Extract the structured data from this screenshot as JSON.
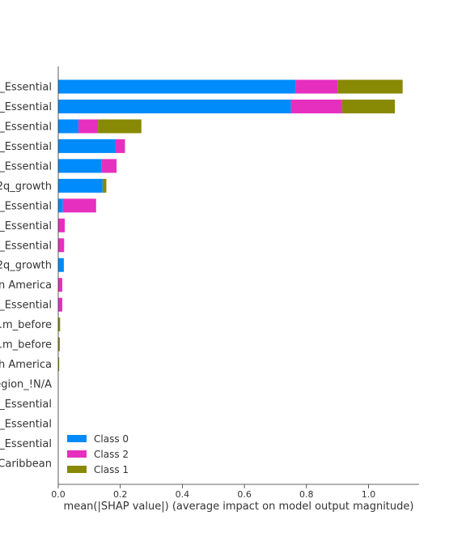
{
  "chart_data": {
    "type": "bar",
    "orientation": "horizontal",
    "stacked": true,
    "xlabel": "mean(|SHAP value|) (average impact on model output magnitude)",
    "xlim": [
      0,
      1.16
    ],
    "xticks": [
      0.0,
      0.2,
      0.4,
      0.6,
      0.8,
      1.0
    ],
    "xtick_labels": [
      "0.0",
      "0.2",
      "0.4",
      "0.6",
      "0.8",
      "1.0"
    ],
    "grid": false,
    "legend_position": "bottom-left",
    "categories": [
      "_Essential",
      "_Essential",
      "_Essential",
      "_Essential",
      "_Essential",
      "2q_growth",
      "_Essential",
      "_Essential",
      "_Essential",
      "2q_growth",
      "n America",
      "_Essential",
      "l.m_before",
      "l.m_before",
      "h America",
      "egion_!N/A",
      "_Essential",
      "_Essential",
      "_Essential",
      "Caribbean"
    ],
    "series": [
      {
        "name": "Class 0",
        "color": "#008bfb",
        "values": [
          0.765,
          0.75,
          0.065,
          0.185,
          0.14,
          0.143,
          0.015,
          0.0,
          0.0,
          0.018,
          0.0,
          0.0,
          0.0,
          0.0,
          0.0,
          0.0,
          0.0,
          0.0,
          0.0,
          0.0
        ]
      },
      {
        "name": "Class 2",
        "color": "#e62fbf",
        "values": [
          0.135,
          0.165,
          0.063,
          0.03,
          0.048,
          0.0,
          0.107,
          0.021,
          0.019,
          0.0,
          0.013,
          0.013,
          0.0,
          0.0,
          0.0,
          0.0,
          0.0,
          0.0,
          0.0,
          0.0
        ]
      },
      {
        "name": "Class 1",
        "color": "#888a05",
        "values": [
          0.21,
          0.17,
          0.14,
          0.0,
          0.0,
          0.012,
          0.0,
          0.0,
          0.0,
          0.0,
          0.0,
          0.0,
          0.006,
          0.005,
          0.003,
          0.0,
          0.0,
          0.0,
          0.0,
          0.0
        ]
      }
    ],
    "legend": [
      "Class 0",
      "Class 2",
      "Class 1"
    ]
  }
}
